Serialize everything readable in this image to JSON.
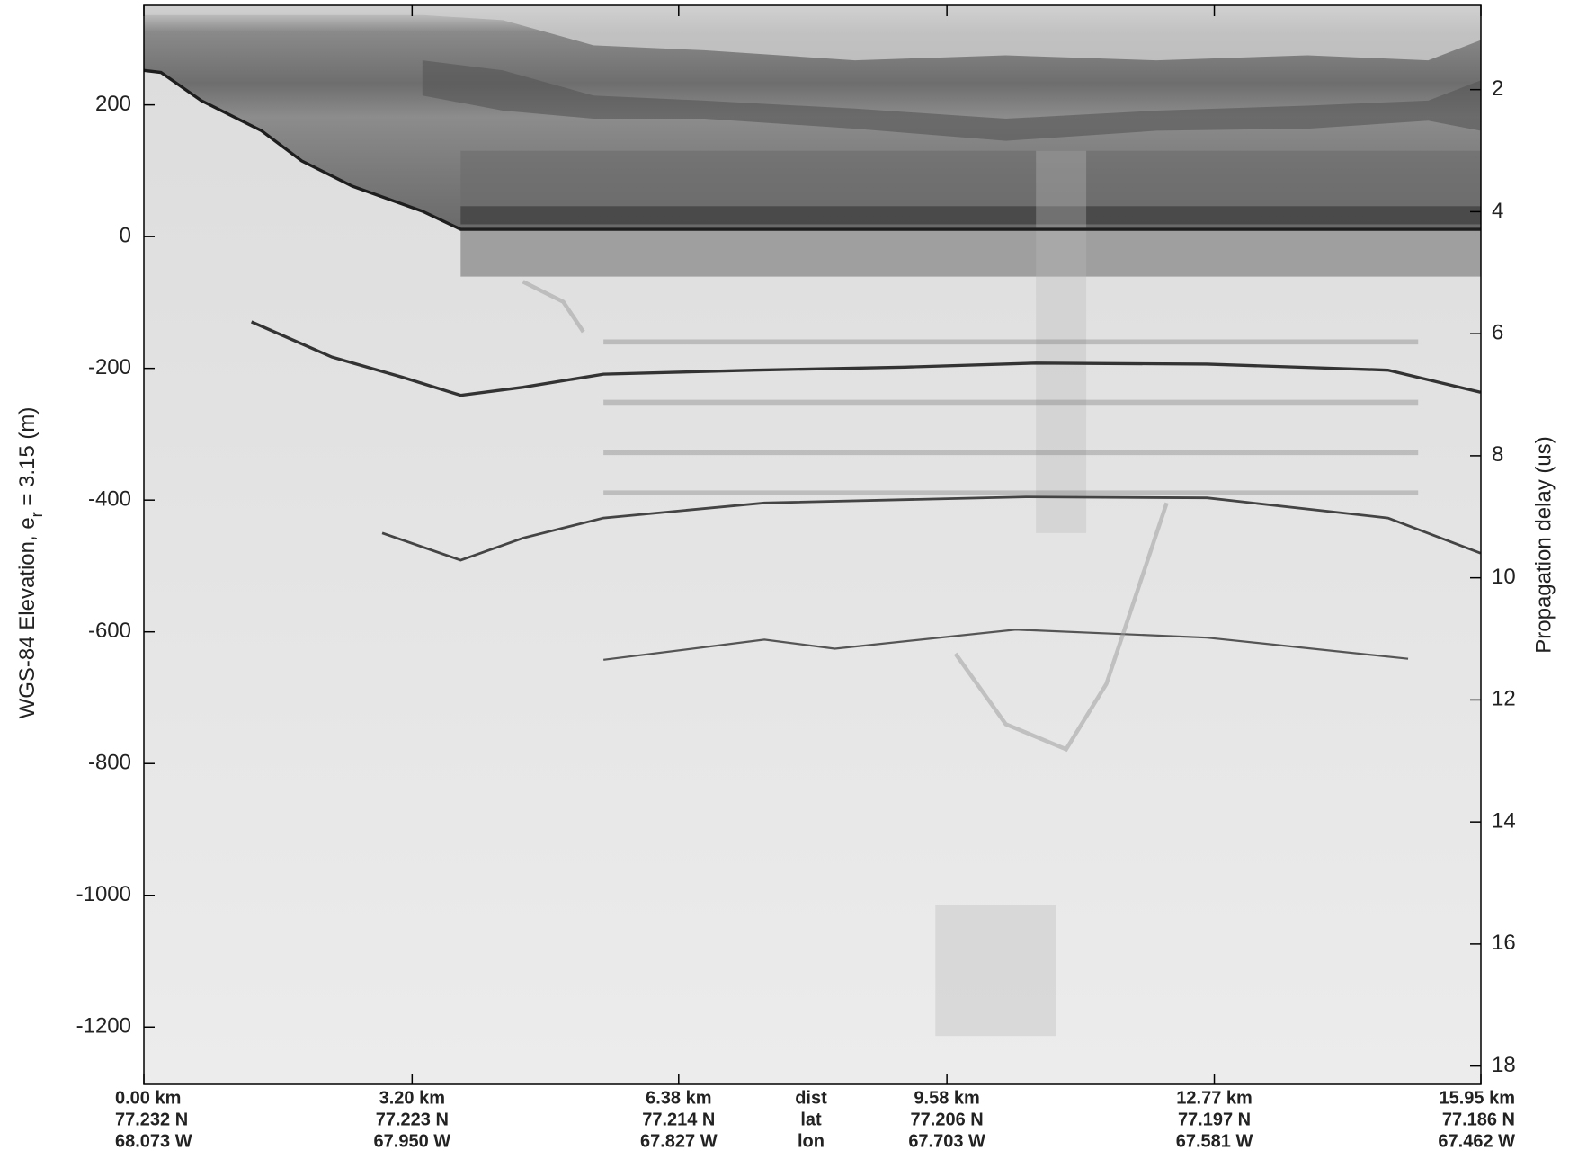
{
  "chart_data": {
    "type": "echogram",
    "ylabel": {
      "text": "WGS-84 Elevation, e",
      "subscript": "r",
      "rest": " = 3.15 (m)"
    },
    "y2label": "Propagation delay (us)",
    "ylim": [
      -1287,
      351
    ],
    "yticks": [
      -1200,
      -1000,
      -800,
      -600,
      -400,
      -200,
      0,
      200
    ],
    "y2lim": [
      18.3,
      0.62
    ],
    "y2ticks": [
      2,
      4,
      6,
      8,
      10,
      12,
      14,
      16,
      18
    ],
    "xlim": [
      0,
      15.95
    ],
    "xticks": [
      {
        "value": 0,
        "label": "0.00 km"
      },
      {
        "value": 3.2,
        "label": "3.20 km"
      },
      {
        "value": 6.38,
        "label": "6.38 km"
      },
      {
        "value": 9.58,
        "label": "9.58 km"
      },
      {
        "value": 12.77,
        "label": "12.77 km"
      },
      {
        "value": 15.95,
        "label": "15.95 km"
      }
    ],
    "lat_labels": [
      "77.232 N",
      "77.223 N",
      "77.214 N",
      "77.206 N",
      "77.197 N",
      "77.186 N"
    ],
    "lon_labels": [
      "68.073 W",
      "67.950 W",
      "67.827 W",
      "67.703 W",
      "67.581 W",
      "67.462 W"
    ],
    "row_labels": [
      "dist",
      "lat",
      "lon"
    ]
  }
}
